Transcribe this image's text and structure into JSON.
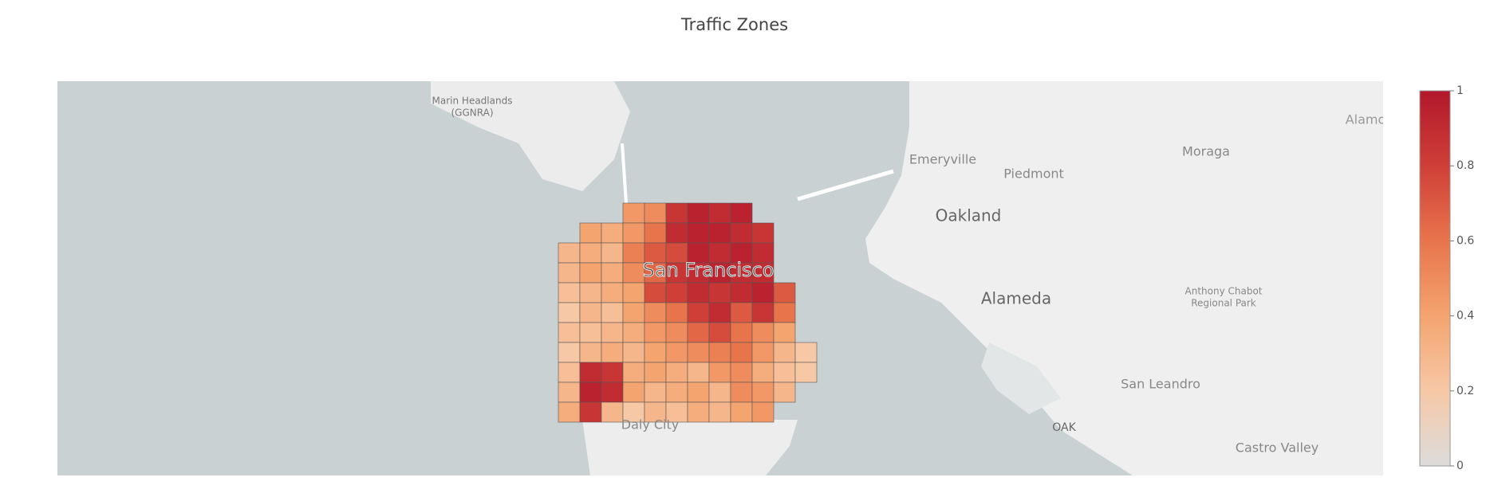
{
  "chart_data": {
    "type": "choropleth",
    "title": "Traffic Zones",
    "colorscale": [
      [
        0,
        "#dcdcdc"
      ],
      [
        0.2,
        "#f6c8a6"
      ],
      [
        0.4,
        "#f4a46f"
      ],
      [
        0.6,
        "#e8744c"
      ],
      [
        0.8,
        "#cf3f38"
      ],
      [
        1,
        "#b2182b"
      ]
    ],
    "zlim": [
      0,
      1
    ],
    "colorbar_ticks": [
      0,
      0.2,
      0.4,
      0.6,
      0.8,
      1
    ],
    "z": [
      [
        null,
        null,
        null,
        0.45,
        0.5,
        0.85,
        0.95,
        0.9,
        0.95,
        null,
        null,
        null
      ],
      [
        null,
        0.4,
        0.35,
        0.45,
        0.6,
        0.9,
        0.95,
        0.95,
        0.9,
        0.85,
        null,
        null
      ],
      [
        0.3,
        0.35,
        0.3,
        0.55,
        0.7,
        0.75,
        0.95,
        0.9,
        0.95,
        0.9,
        null,
        null
      ],
      [
        0.3,
        0.4,
        0.35,
        0.5,
        0.65,
        0.85,
        0.9,
        0.95,
        0.9,
        0.9,
        null,
        null
      ],
      [
        0.25,
        0.3,
        0.35,
        0.4,
        0.75,
        0.8,
        0.9,
        0.85,
        0.9,
        0.95,
        0.7,
        null
      ],
      [
        0.2,
        0.3,
        0.25,
        0.4,
        0.5,
        0.6,
        0.8,
        0.9,
        0.7,
        0.85,
        0.6,
        null
      ],
      [
        0.25,
        0.25,
        0.3,
        0.35,
        0.45,
        0.5,
        0.65,
        0.75,
        0.6,
        0.5,
        0.4,
        null
      ],
      [
        0.2,
        0.3,
        0.35,
        0.3,
        0.4,
        0.45,
        0.5,
        0.55,
        0.6,
        0.45,
        0.3,
        0.2
      ],
      [
        0.25,
        0.9,
        0.85,
        0.35,
        0.4,
        0.35,
        0.3,
        0.45,
        0.5,
        0.35,
        0.25,
        0.2
      ],
      [
        0.3,
        0.95,
        0.9,
        0.4,
        0.3,
        0.35,
        0.4,
        0.3,
        0.5,
        0.45,
        0.3,
        null
      ],
      [
        0.35,
        0.85,
        0.3,
        0.2,
        0.3,
        0.25,
        0.35,
        0.3,
        0.4,
        0.45,
        null,
        null
      ]
    ],
    "map_labels": [
      "Marin Headlands",
      "(GGNRA)",
      "Emeryville",
      "Piedmont",
      "Oakland",
      "Moraga",
      "Alamo",
      "San Francisco",
      "Alameda",
      "Anthony Chabot",
      "Regional Park",
      "San Leandro",
      "OAK",
      "Daly City",
      "Castro Valley"
    ]
  }
}
